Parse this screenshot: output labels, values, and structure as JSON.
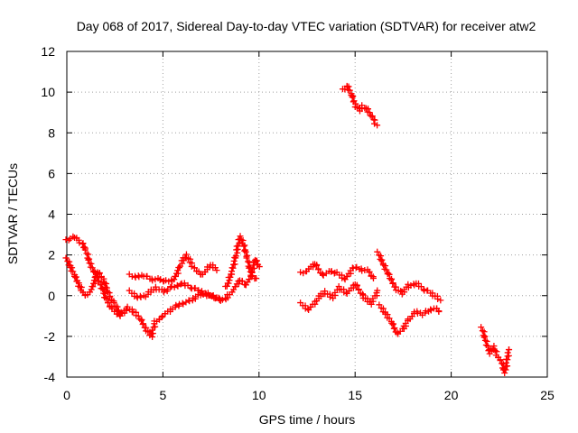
{
  "chart_data": {
    "type": "scatter",
    "title": "Day 068 of 2017, Sidereal Day-to-day VTEC variation (SDTVAR) for receiver atw2",
    "xlabel": "GPS time / hours",
    "ylabel": "SDTVAR / TECUs",
    "xlim": [
      0,
      25
    ],
    "ylim": [
      -4,
      12
    ],
    "xticks": [
      0,
      5,
      10,
      15,
      20,
      25
    ],
    "yticks": [
      -4,
      -2,
      0,
      2,
      4,
      6,
      8,
      10,
      12
    ],
    "xtick_labels": [
      "0",
      "5",
      "10",
      "15",
      "20",
      "25"
    ],
    "ytick_labels": [
      "-4",
      "-2",
      "0",
      "2",
      "4",
      "6",
      "8",
      "10",
      "12"
    ],
    "grid": true,
    "marker": "plus",
    "color": "#ff0000",
    "series": [
      {
        "name": "band-upper-left",
        "x": [
          0.0,
          0.2,
          0.4,
          0.6,
          0.8,
          1.0,
          1.2,
          1.5,
          1.8,
          2.1,
          2.4,
          2.7,
          3.0
        ],
        "y": [
          2.7,
          2.8,
          2.9,
          2.7,
          2.6,
          2.2,
          1.6,
          1.0,
          0.5,
          -0.3,
          -0.7,
          -0.9,
          -0.8
        ]
      },
      {
        "name": "band-lower-left",
        "x": [
          0.0,
          0.2,
          0.4,
          0.6,
          0.8,
          1.0,
          1.3,
          1.6,
          1.9,
          2.2,
          2.5,
          2.8,
          3.1
        ],
        "y": [
          1.8,
          1.4,
          1.0,
          0.6,
          0.2,
          0.0,
          0.3,
          1.2,
          0.8,
          0.0,
          -0.4,
          -1.0,
          -0.6
        ]
      },
      {
        "name": "plateau-upper",
        "x": [
          3.3,
          3.6,
          4.0,
          4.4,
          4.8,
          5.2,
          5.6,
          5.9,
          6.2,
          6.6,
          7.0,
          7.5,
          7.8
        ],
        "y": [
          1.0,
          0.9,
          1.0,
          0.8,
          0.8,
          0.7,
          0.8,
          1.5,
          2.0,
          1.4,
          1.0,
          1.5,
          1.3
        ]
      },
      {
        "name": "plateau-mid",
        "x": [
          3.3,
          3.7,
          4.1,
          4.6,
          5.0,
          5.5,
          6.0,
          6.5,
          7.0,
          7.5,
          8.0,
          8.4
        ],
        "y": [
          0.2,
          -0.1,
          0.0,
          0.4,
          0.2,
          0.4,
          0.6,
          0.4,
          0.2,
          0.0,
          -0.2,
          -0.1
        ]
      },
      {
        "name": "plateau-low",
        "x": [
          3.2,
          3.5,
          3.8,
          4.1,
          4.4,
          4.6,
          5.0,
          5.5,
          6.0,
          6.5,
          7.0,
          7.5,
          8.0
        ],
        "y": [
          -0.6,
          -0.8,
          -1.1,
          -1.6,
          -2.0,
          -1.3,
          -1.0,
          -0.6,
          -0.4,
          -0.2,
          0.1,
          0.0,
          -0.2
        ]
      },
      {
        "name": "cluster-9h",
        "x": [
          8.3,
          8.6,
          8.8,
          9.0,
          9.2,
          9.4,
          9.6,
          9.8,
          10.0
        ],
        "y": [
          0.4,
          1.2,
          2.0,
          2.9,
          2.5,
          1.8,
          1.0,
          1.8,
          1.4
        ]
      },
      {
        "name": "cluster-9h-lower",
        "x": [
          8.4,
          8.7,
          9.0,
          9.3,
          9.6,
          9.9
        ],
        "y": [
          0.0,
          0.3,
          0.8,
          0.5,
          1.0,
          0.8
        ]
      },
      {
        "name": "mid-day-upper",
        "x": [
          12.2,
          12.5,
          12.9,
          13.3,
          13.7,
          14.1,
          14.5,
          14.9,
          15.3,
          15.7,
          16.0
        ],
        "y": [
          1.1,
          1.2,
          1.6,
          1.0,
          1.2,
          1.1,
          0.8,
          1.4,
          1.3,
          1.2,
          0.8
        ]
      },
      {
        "name": "mid-day-lower",
        "x": [
          12.2,
          12.6,
          13.0,
          13.4,
          13.8,
          14.2,
          14.6,
          15.0,
          15.4,
          15.8,
          16.2
        ],
        "y": [
          -0.4,
          -0.7,
          -0.2,
          0.2,
          -0.1,
          0.4,
          0.1,
          0.6,
          0.0,
          -0.4,
          0.2
        ]
      },
      {
        "name": "late-upper",
        "x": [
          16.2,
          16.5,
          16.8,
          17.1,
          17.4,
          17.8,
          18.2,
          18.6,
          19.0,
          19.4
        ],
        "y": [
          2.1,
          1.5,
          0.9,
          0.4,
          0.1,
          0.5,
          0.6,
          0.3,
          0.1,
          -0.2
        ]
      },
      {
        "name": "late-lower",
        "x": [
          16.3,
          16.6,
          16.9,
          17.2,
          17.5,
          17.8,
          18.1,
          18.5,
          18.9,
          19.2,
          19.4
        ],
        "y": [
          -0.5,
          -0.9,
          -1.3,
          -1.9,
          -1.6,
          -1.2,
          -0.8,
          -0.9,
          -0.7,
          -0.6,
          -0.8
        ]
      },
      {
        "name": "high-arc",
        "x": [
          14.4,
          14.6,
          14.8,
          15.0,
          15.2,
          15.4,
          15.6,
          15.8,
          16.0,
          16.1
        ],
        "y": [
          10.1,
          10.3,
          9.9,
          9.4,
          9.1,
          9.3,
          9.2,
          8.9,
          8.6,
          8.4
        ]
      },
      {
        "name": "evening-cluster",
        "x": [
          21.6,
          21.8,
          22.0,
          22.2,
          22.4,
          22.6,
          22.8,
          23.0
        ],
        "y": [
          -1.6,
          -2.2,
          -2.8,
          -2.5,
          -3.0,
          -3.2,
          -3.8,
          -2.6
        ]
      }
    ]
  }
}
